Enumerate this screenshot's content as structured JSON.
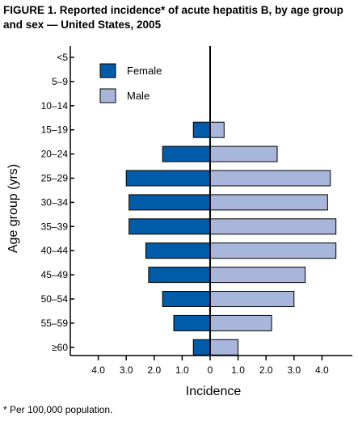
{
  "figure": {
    "title": "FIGURE 1. Reported incidence* of acute hepatitis B,  by age group and sex — United States, 2005",
    "footnote": "* Per 100,000 population."
  },
  "chart_data": {
    "type": "bar",
    "orientation": "horizontal",
    "layout": "population-pyramid",
    "categories": [
      "<5",
      "5–9",
      "10–14",
      "15–19",
      "20–24",
      "25–29",
      "30–34",
      "35–39",
      "40–44",
      "45–49",
      "50–54",
      "55–59",
      "≥60"
    ],
    "series": [
      {
        "name": "Female",
        "side": "left",
        "color": "#005ba8",
        "values": [
          0,
          0,
          0,
          0.6,
          1.7,
          3.0,
          2.9,
          2.9,
          2.3,
          2.2,
          1.7,
          1.3,
          0.6
        ]
      },
      {
        "name": "Male",
        "side": "right",
        "color": "#a9b6dc",
        "values": [
          0,
          0,
          0,
          0.5,
          2.4,
          4.3,
          4.2,
          4.5,
          4.5,
          3.4,
          3.0,
          2.2,
          1.0
        ]
      }
    ],
    "xlabel": "Incidence",
    "ylabel": "Age group (yrs)",
    "xlim": [
      -4.0,
      4.0
    ],
    "xticks": [
      -4,
      -3,
      -2,
      -1,
      0,
      1,
      2,
      3,
      4
    ],
    "xtick_labels": [
      "4.0",
      "3.0",
      "2.0",
      "1.0",
      "0",
      "1.0",
      "2.0",
      "3.0",
      "4.0"
    ],
    "grid": false,
    "legend_position": "top-left"
  }
}
